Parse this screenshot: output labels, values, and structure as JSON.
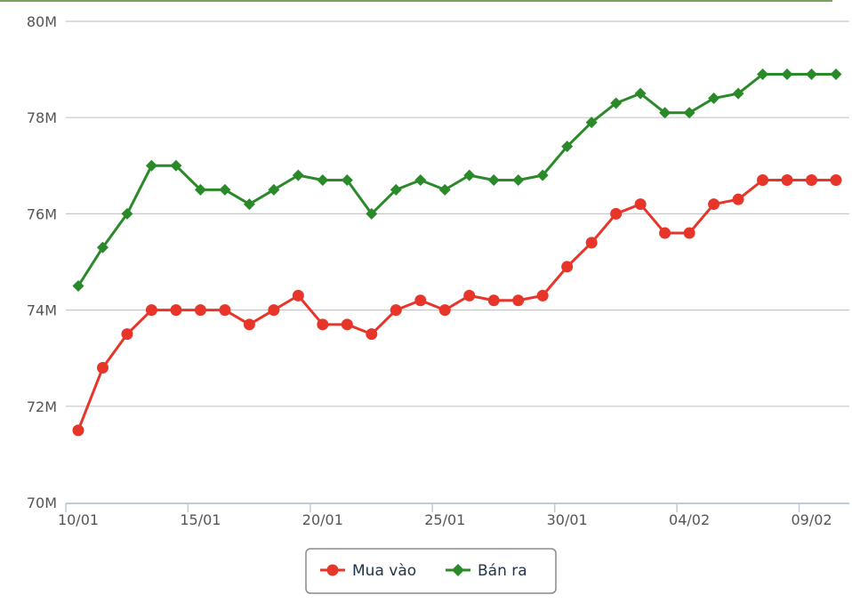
{
  "chart_data": {
    "type": "line",
    "title": "",
    "xlabel": "",
    "ylabel": "",
    "ylim": [
      70000000,
      80000000
    ],
    "y_ticks": [
      {
        "value": 70000000,
        "label": "70M"
      },
      {
        "value": 72000000,
        "label": "72M"
      },
      {
        "value": 74000000,
        "label": "74M"
      },
      {
        "value": 76000000,
        "label": "76M"
      },
      {
        "value": 78000000,
        "label": "78M"
      },
      {
        "value": 80000000,
        "label": "80M"
      }
    ],
    "x_ticks": [
      {
        "index": 0,
        "label": "10/01"
      },
      {
        "index": 5,
        "label": "15/01"
      },
      {
        "index": 10,
        "label": "20/01"
      },
      {
        "index": 15,
        "label": "25/01"
      },
      {
        "index": 20,
        "label": "30/01"
      },
      {
        "index": 25,
        "label": "04/02"
      },
      {
        "index": 30,
        "label": "09/02"
      }
    ],
    "x": [
      "10/01",
      "11/01",
      "12/01",
      "13/01",
      "14/01",
      "15/01",
      "16/01",
      "17/01",
      "18/01",
      "19/01",
      "20/01",
      "21/01",
      "22/01",
      "23/01",
      "24/01",
      "25/01",
      "26/01",
      "27/01",
      "28/01",
      "29/01",
      "30/01",
      "31/01",
      "01/02",
      "02/02",
      "03/02",
      "04/02",
      "05/02",
      "06/02",
      "07/02",
      "08/02",
      "09/02",
      "10/02"
    ],
    "grid": true,
    "legend_position": "bottom",
    "series": [
      {
        "name": "Mua vào",
        "color": "#e8352a",
        "marker": "circle",
        "values": [
          71500000,
          72800000,
          73500000,
          74000000,
          74000000,
          74000000,
          74000000,
          73700000,
          74000000,
          74300000,
          73700000,
          73700000,
          73500000,
          74000000,
          74200000,
          74000000,
          74300000,
          74200000,
          74200000,
          74300000,
          74900000,
          75400000,
          76000000,
          76200000,
          75600000,
          75600000,
          76200000,
          76300000,
          76700000,
          76700000,
          76700000,
          76700000
        ]
      },
      {
        "name": "Bán ra",
        "color": "#2a8a2a",
        "marker": "diamond",
        "values": [
          74500000,
          75300000,
          76000000,
          77000000,
          77000000,
          76500000,
          76500000,
          76200000,
          76500000,
          76800000,
          76700000,
          76700000,
          76000000,
          76500000,
          76700000,
          76500000,
          76800000,
          76700000,
          76700000,
          76800000,
          77400000,
          77900000,
          78300000,
          78500000,
          78100000,
          78100000,
          78400000,
          78500000,
          78900000,
          78900000,
          78900000,
          78900000
        ]
      }
    ]
  },
  "colors": {
    "grid": "#c8c8c8",
    "axis": "#bfcbd8",
    "top_border": "#7aa25c",
    "legend_border": "#8a8a8a"
  }
}
